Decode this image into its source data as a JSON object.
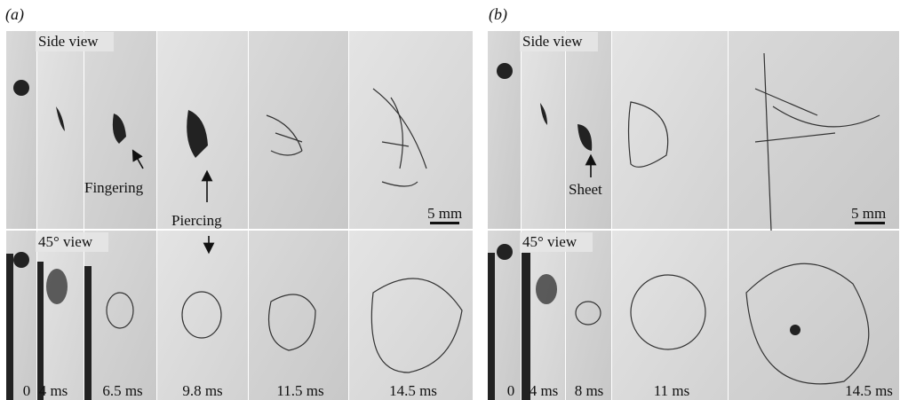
{
  "panels": [
    {
      "label": "(a)",
      "side_view": "Side view",
      "angled_view": "45° view",
      "annotations": [
        "Fingering",
        "Piercing"
      ],
      "scale_bar": "5 mm",
      "times": [
        "0",
        "4 ms",
        "6.5 ms",
        "9.8 ms",
        "11.5 ms",
        "14.5 ms"
      ]
    },
    {
      "label": "(b)",
      "side_view": "Side view",
      "angled_view": "45° view",
      "annotations": [
        "Sheet"
      ],
      "scale_bar": "5 mm",
      "times": [
        "0",
        "4 ms",
        "8 ms",
        "11 ms",
        "14.5 ms"
      ]
    }
  ]
}
